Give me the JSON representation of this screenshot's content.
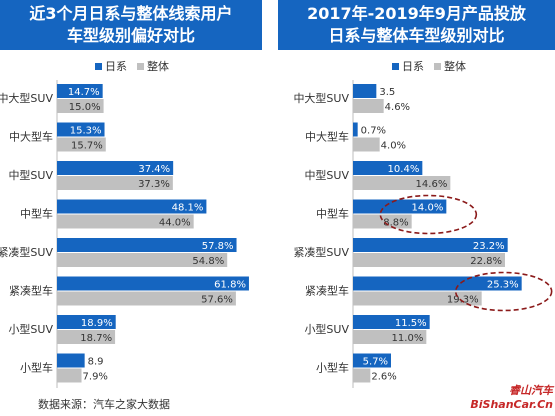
{
  "colors": {
    "japanese": "#1565c0",
    "overall": "#c0c0c0",
    "ellipse": "#8b1a1a"
  },
  "source": "数据来源：汽车之家大数据",
  "watermark": {
    "line1": "睿山汽车",
    "line2": "BiShanCar.Cn"
  },
  "chart_data": [
    {
      "type": "bar",
      "orientation": "horizontal",
      "title_lines": [
        "近3个月日系与整体线索用户",
        "车型级别偏好对比"
      ],
      "legend": [
        "日系",
        "整体"
      ],
      "categories": [
        "中大型SUV",
        "中大型车",
        "中型SUV",
        "中型车",
        "紧凑型SUV",
        "紧凑型车",
        "小型SUV",
        "小型车"
      ],
      "series": [
        {
          "name": "日系",
          "values": [
            14.7,
            15.3,
            37.4,
            48.1,
            57.8,
            61.8,
            18.9,
            8.9
          ],
          "labels": [
            "14.7%",
            "15.3%",
            "37.4%",
            "48.1%",
            "57.8%",
            "61.8%",
            "18.9%",
            "8.9"
          ]
        },
        {
          "name": "整体",
          "values": [
            15.0,
            15.7,
            37.3,
            44.0,
            54.8,
            57.6,
            18.7,
            7.9
          ],
          "labels": [
            "15.0%",
            "15.7%",
            "37.3%",
            "44.0%",
            "54.8%",
            "57.6%",
            "18.7%",
            "7.9%"
          ]
        }
      ],
      "xlim": [
        0,
        66
      ],
      "highlight": []
    },
    {
      "type": "bar",
      "orientation": "horizontal",
      "title_lines": [
        "2017年-2019年9月产品投放",
        "日系与整体车型级别对比"
      ],
      "legend": [
        "日系",
        "整体"
      ],
      "categories": [
        "中大型SUV",
        "中大型车",
        "中型SUV",
        "中型车",
        "紧凑型SUV",
        "紧凑型车",
        "小型SUV",
        "小型车"
      ],
      "series": [
        {
          "name": "日系",
          "values": [
            3.5,
            0.7,
            10.4,
            14.0,
            23.2,
            25.3,
            11.5,
            5.7
          ],
          "labels": [
            "3.5",
            "0.7%",
            "10.4%",
            "14.0%",
            "23.2%",
            "25.3%",
            "11.5%",
            "5.7%"
          ]
        },
        {
          "name": "整体",
          "values": [
            4.6,
            4.0,
            14.6,
            8.8,
            22.8,
            19.3,
            11.0,
            2.6
          ],
          "labels": [
            "4.6%",
            "4.0%",
            "14.6%",
            "8.8%",
            "22.8%",
            "19.3%",
            "11.0%",
            "2.6%"
          ]
        }
      ],
      "xlim": [
        0,
        27
      ],
      "highlight": [
        "中型车",
        "紧凑型车"
      ]
    }
  ]
}
